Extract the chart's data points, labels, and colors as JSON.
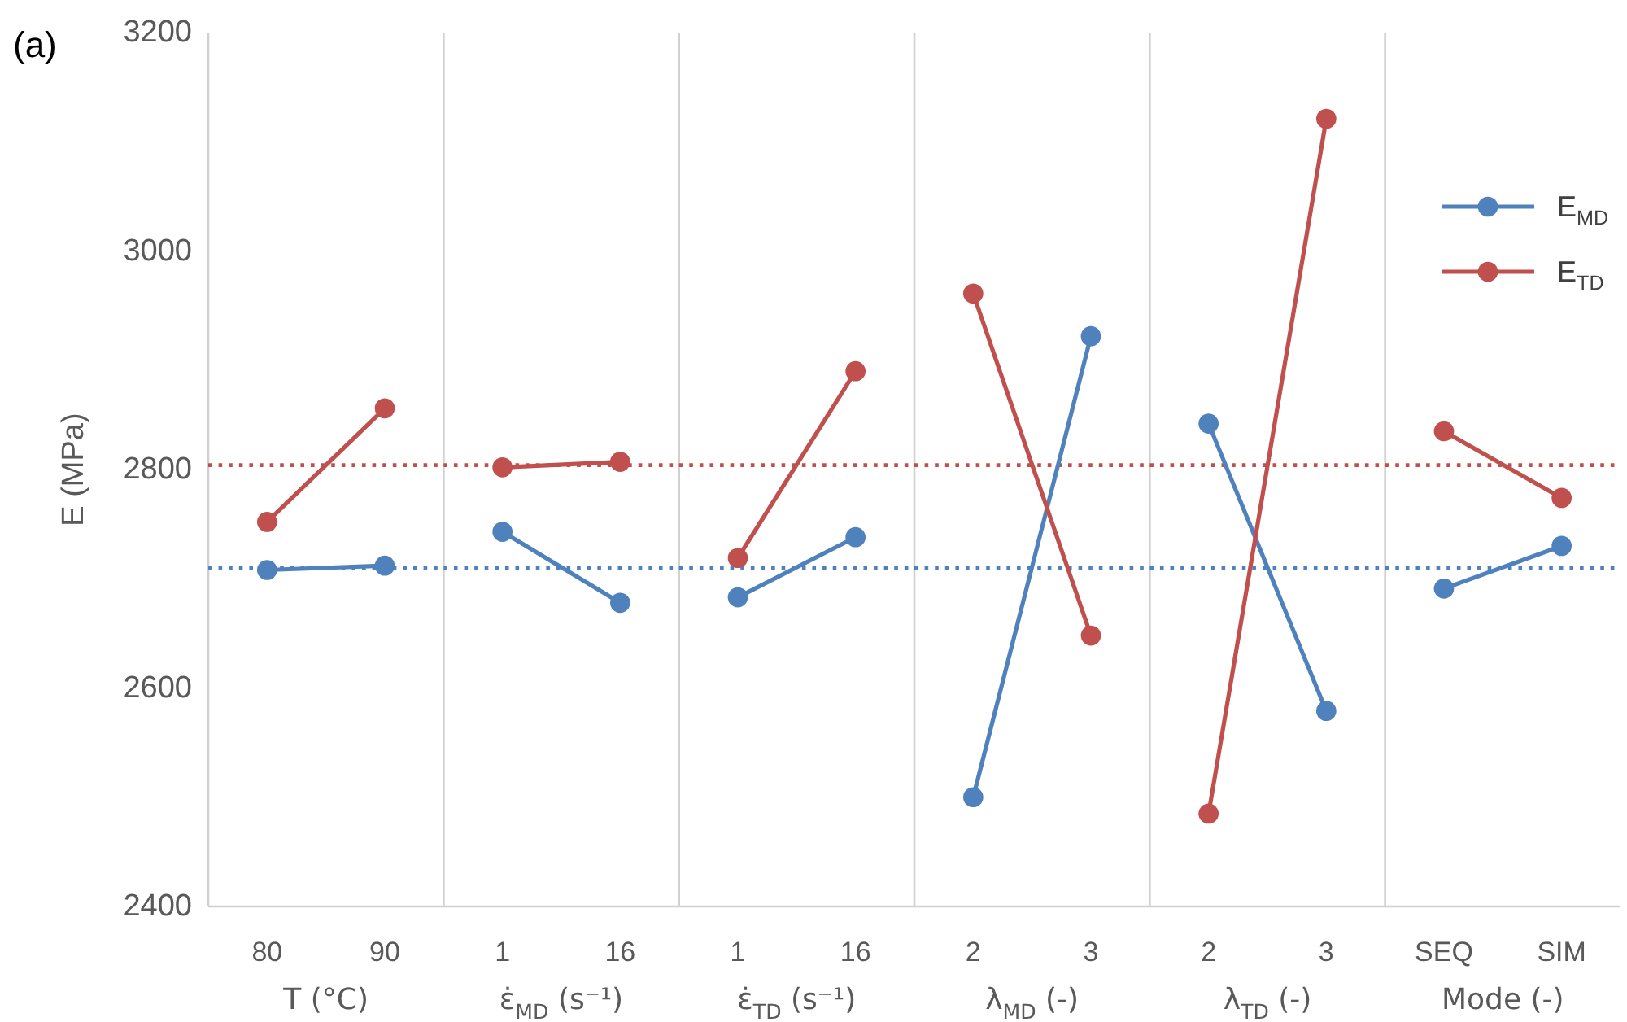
{
  "chart_data": [
    {
      "type": "line",
      "annotations": [
        "(a)"
      ],
      "categories": [
        "80",
        "90"
      ],
      "xlabel": "T (°C)",
      "ylabel": "E (MPa)",
      "ylim": [
        2400,
        3200
      ],
      "yticks": [
        2400,
        2600,
        2800,
        3000,
        3200
      ],
      "marker": "circle",
      "series": [
        {
          "color": "#4f81bd",
          "values": [
            2708,
            2712
          ]
        },
        {
          "color": "#c0504d",
          "values": [
            2752,
            2856
          ]
        }
      ],
      "ref_lines": [
        {
          "axis": "y",
          "value": 2710,
          "color": "#4f81bd",
          "line_style": "dotted"
        },
        {
          "axis": "y",
          "value": 2804,
          "color": "#c0504d",
          "line_style": "dotted"
        }
      ]
    },
    {
      "type": "line",
      "categories": [
        "1",
        "16"
      ],
      "xlabel": "ε̇$_{MD}$ (s⁻¹)",
      "ylim": [
        2400,
        3200
      ],
      "tick_labels": "x",
      "marker": "circle",
      "series": [
        {
          "color": "#4f81bd",
          "values": [
            2743,
            2678
          ]
        },
        {
          "color": "#c0504d",
          "values": [
            2802,
            2807
          ]
        }
      ],
      "ref_lines": [
        {
          "axis": "y",
          "value": 2710,
          "color": "#4f81bd",
          "line_style": "dotted"
        },
        {
          "axis": "y",
          "value": 2804,
          "color": "#c0504d",
          "line_style": "dotted"
        }
      ]
    },
    {
      "type": "line",
      "categories": [
        "1",
        "16"
      ],
      "xlabel": "ε̇$_{TD}$ (s⁻¹)",
      "ylim": [
        2400,
        3200
      ],
      "tick_labels": "x",
      "marker": "circle",
      "series": [
        {
          "color": "#4f81bd",
          "values": [
            2683,
            2738
          ]
        },
        {
          "color": "#c0504d",
          "values": [
            2719,
            2890
          ]
        }
      ],
      "ref_lines": [
        {
          "axis": "y",
          "value": 2710,
          "color": "#4f81bd",
          "line_style": "dotted"
        },
        {
          "axis": "y",
          "value": 2804,
          "color": "#c0504d",
          "line_style": "dotted"
        }
      ]
    },
    {
      "type": "line",
      "categories": [
        "2",
        "3"
      ],
      "xlabel": "λ$_{MD}$ (-)",
      "ylim": [
        2400,
        3200
      ],
      "tick_labels": "x",
      "marker": "circle",
      "series": [
        {
          "color": "#4f81bd",
          "values": [
            2500,
            2922
          ]
        },
        {
          "color": "#c0504d",
          "values": [
            2961,
            2648
          ]
        }
      ],
      "ref_lines": [
        {
          "axis": "y",
          "value": 2710,
          "color": "#4f81bd",
          "line_style": "dotted"
        },
        {
          "axis": "y",
          "value": 2804,
          "color": "#c0504d",
          "line_style": "dotted"
        }
      ]
    },
    {
      "type": "line",
      "categories": [
        "2",
        "3"
      ],
      "xlabel": "λ$_{TD}$ (-)",
      "ylim": [
        2400,
        3200
      ],
      "tick_labels": "x",
      "marker": "circle",
      "series": [
        {
          "color": "#4f81bd",
          "values": [
            2842,
            2579
          ]
        },
        {
          "color": "#c0504d",
          "values": [
            2485,
            3121
          ]
        }
      ],
      "ref_lines": [
        {
          "axis": "y",
          "value": 2710,
          "color": "#4f81bd",
          "line_style": "dotted"
        },
        {
          "axis": "y",
          "value": 2804,
          "color": "#c0504d",
          "line_style": "dotted"
        }
      ]
    },
    {
      "type": "line",
      "categories": [
        "SEQ",
        "SIM"
      ],
      "xlabel": "Mode (-)",
      "ylim": [
        2400,
        3200
      ],
      "tick_labels": "x",
      "marker": "circle",
      "legend": "top right",
      "series": [
        {
          "name": "E$_{MD}$",
          "color": "#4f81bd",
          "values": [
            2691,
            2730
          ]
        },
        {
          "name": "E$_{TD}$",
          "color": "#c0504d",
          "values": [
            2835,
            2774
          ]
        }
      ],
      "ref_lines": [
        {
          "axis": "y",
          "value": 2710,
          "color": "#4f81bd",
          "line_style": "dotted"
        },
        {
          "axis": "y",
          "value": 2804,
          "color": "#c0504d",
          "line_style": "dotted"
        }
      ]
    }
  ]
}
